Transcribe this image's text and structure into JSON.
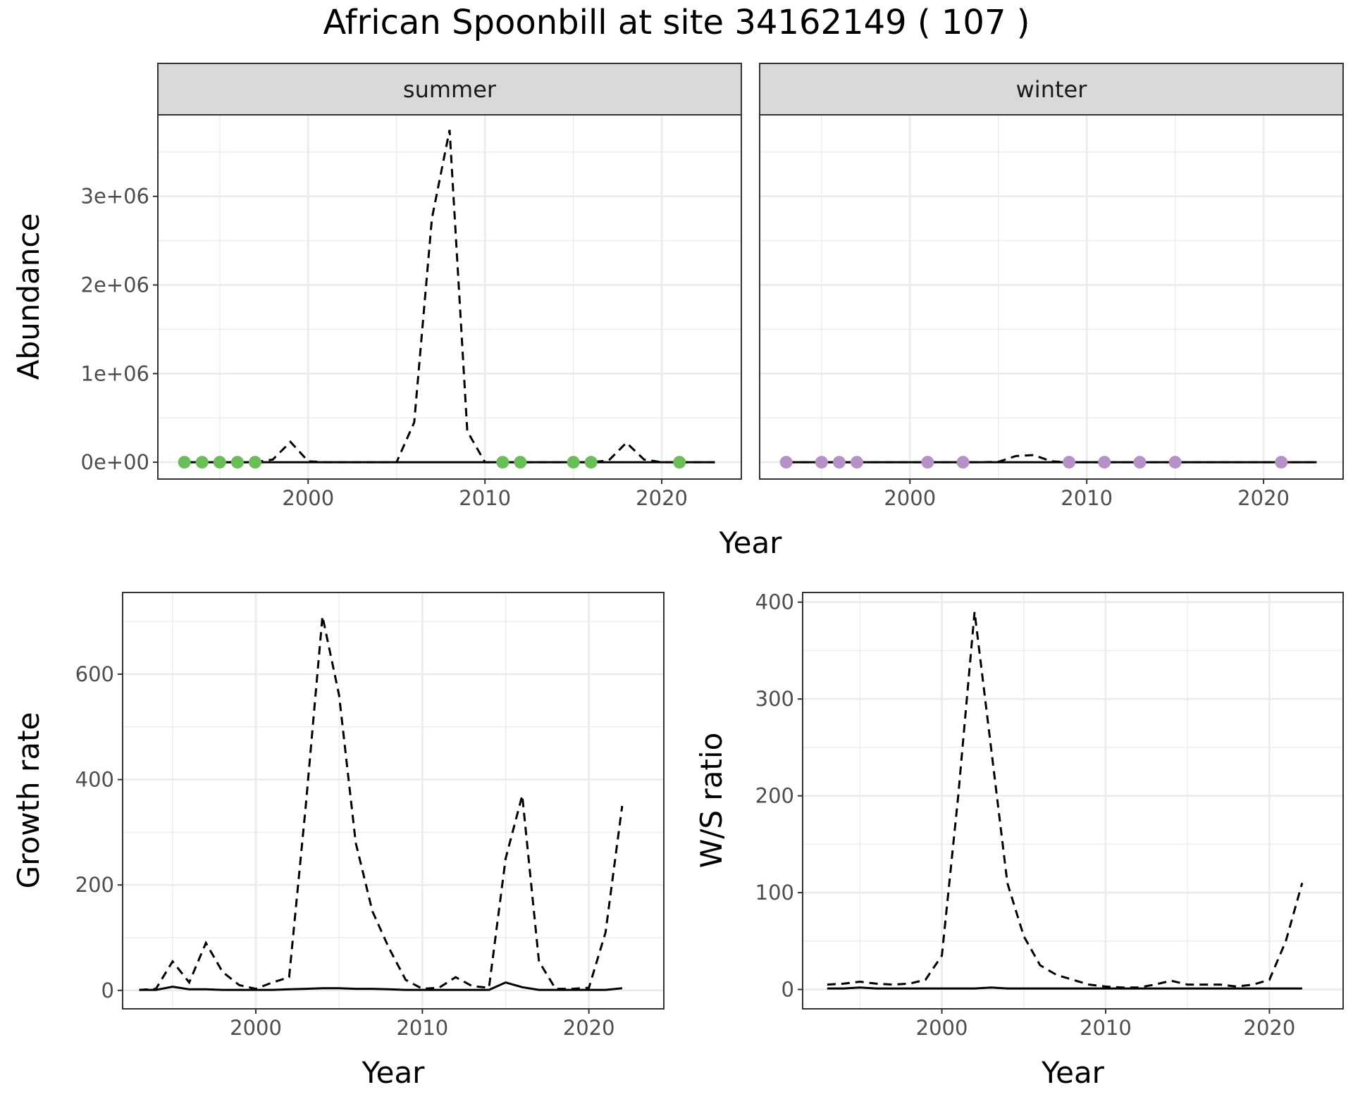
{
  "figure": {
    "title": "African Spoonbill at site 34162149 ( 107 )"
  },
  "chart_data": [
    {
      "type": "line",
      "id": "abundance",
      "ylabel": "Abundance",
      "xlabel": "Year",
      "xlim": [
        1991.5,
        2024.5
      ],
      "ylim": [
        -190000,
        3920000
      ],
      "xticks": [
        2000,
        2010,
        2020
      ],
      "xtick_labels": [
        "2000",
        "2010",
        "2020"
      ],
      "yticks": [
        0,
        1000000,
        2000000,
        3000000
      ],
      "ytick_labels": [
        "0e+00",
        "1e+06",
        "2e+06",
        "3e+06"
      ],
      "grid": true,
      "facets": [
        {
          "strip": "summer",
          "point_color": "#6bbd5a",
          "series": [
            {
              "style": "solid",
              "x": [
                1993,
                1994,
                1995,
                1996,
                1997,
                1998,
                1999,
                2000,
                2001,
                2002,
                2003,
                2004,
                2005,
                2006,
                2007,
                2008,
                2009,
                2010,
                2011,
                2012,
                2013,
                2014,
                2015,
                2016,
                2017,
                2018,
                2019,
                2020,
                2021,
                2022,
                2023
              ],
              "y": [
                0,
                0,
                0,
                0,
                0,
                0,
                0,
                0,
                0,
                0,
                0,
                0,
                0,
                0,
                0,
                0,
                0,
                0,
                0,
                0,
                0,
                0,
                0,
                0,
                0,
                0,
                0,
                0,
                0,
                0,
                0
              ]
            },
            {
              "style": "dashed",
              "x": [
                1993,
                1994,
                1995,
                1996,
                1997,
                1998,
                1999,
                2000,
                2001,
                2002,
                2003,
                2004,
                2005,
                2006,
                2007,
                2008,
                2009,
                2010,
                2011,
                2012,
                2013,
                2014,
                2015,
                2016,
                2017,
                2018,
                2019,
                2020,
                2021,
                2022,
                2023
              ],
              "y": [
                0,
                0,
                0,
                0,
                0,
                30000,
                230000,
                10000,
                0,
                0,
                0,
                0,
                0,
                450000,
                2750000,
                3750000,
                350000,
                0,
                0,
                0,
                0,
                0,
                0,
                0,
                20000,
                220000,
                30000,
                0,
                0,
                0,
                0
              ]
            }
          ],
          "points": {
            "x": [
              1993,
              1994,
              1995,
              1996,
              1997,
              2011,
              2012,
              2015,
              2016,
              2021
            ],
            "y": [
              0,
              0,
              0,
              0,
              0,
              0,
              0,
              0,
              0,
              0
            ]
          }
        },
        {
          "strip": "winter",
          "point_color": "#b591c8",
          "series": [
            {
              "style": "solid",
              "x": [
                1993,
                1994,
                1995,
                1996,
                1997,
                1998,
                1999,
                2000,
                2001,
                2002,
                2003,
                2004,
                2005,
                2006,
                2007,
                2008,
                2009,
                2010,
                2011,
                2012,
                2013,
                2014,
                2015,
                2016,
                2017,
                2018,
                2019,
                2020,
                2021,
                2022,
                2023
              ],
              "y": [
                0,
                0,
                0,
                0,
                0,
                0,
                0,
                0,
                0,
                0,
                0,
                0,
                0,
                0,
                0,
                0,
                0,
                0,
                0,
                0,
                0,
                0,
                0,
                0,
                0,
                0,
                0,
                0,
                0,
                0,
                0
              ]
            },
            {
              "style": "dashed",
              "x": [
                1993,
                1994,
                1995,
                1996,
                1997,
                1998,
                1999,
                2000,
                2001,
                2002,
                2003,
                2004,
                2005,
                2006,
                2007,
                2008,
                2009,
                2010,
                2011,
                2012,
                2013,
                2014,
                2015,
                2016,
                2017,
                2018,
                2019,
                2020,
                2021,
                2022,
                2023
              ],
              "y": [
                0,
                0,
                0,
                0,
                0,
                0,
                0,
                0,
                0,
                0,
                0,
                0,
                5000,
                70000,
                80000,
                10000,
                0,
                0,
                0,
                0,
                0,
                0,
                0,
                0,
                0,
                0,
                0,
                0,
                0,
                0,
                0
              ]
            }
          ],
          "points": {
            "x": [
              1993,
              1995,
              1996,
              1997,
              2001,
              2003,
              2009,
              2011,
              2013,
              2015,
              2021
            ],
            "y": [
              0,
              0,
              0,
              0,
              0,
              0,
              0,
              0,
              0,
              0,
              0
            ]
          }
        }
      ]
    },
    {
      "type": "line",
      "id": "growth",
      "ylabel": "Growth rate",
      "xlabel": "Year",
      "xlim": [
        1992,
        2024.5
      ],
      "ylim": [
        -35,
        755
      ],
      "xticks": [
        2000,
        2010,
        2020
      ],
      "xtick_labels": [
        "2000",
        "2010",
        "2020"
      ],
      "yticks": [
        0,
        200,
        400,
        600
      ],
      "ytick_labels": [
        "0",
        "200",
        "400",
        "600"
      ],
      "grid": true,
      "series": [
        {
          "style": "solid",
          "x": [
            1993,
            1994,
            1995,
            1996,
            1997,
            1998,
            1999,
            2000,
            2001,
            2002,
            2003,
            2004,
            2005,
            2006,
            2007,
            2008,
            2009,
            2010,
            2011,
            2012,
            2013,
            2014,
            2015,
            2016,
            2017,
            2018,
            2019,
            2020,
            2021,
            2022
          ],
          "y": [
            1,
            1,
            7,
            2,
            2,
            1,
            1,
            1,
            1,
            2,
            3,
            4,
            4,
            3,
            3,
            2,
            1,
            1,
            1,
            1,
            1,
            1,
            15,
            6,
            1,
            1,
            1,
            1,
            1,
            4
          ]
        },
        {
          "style": "dashed",
          "x": [
            1993,
            1994,
            1995,
            1996,
            1997,
            1998,
            1999,
            2000,
            2001,
            2002,
            2003,
            2004,
            2005,
            2006,
            2007,
            2008,
            2009,
            2010,
            2011,
            2012,
            2013,
            2014,
            2015,
            2016,
            2017,
            2018,
            2019,
            2020,
            2021,
            2022
          ],
          "y": [
            1,
            3,
            55,
            15,
            90,
            35,
            10,
            3,
            15,
            25,
            350,
            710,
            560,
            280,
            150,
            80,
            20,
            3,
            5,
            25,
            8,
            5,
            250,
            370,
            55,
            3,
            3,
            5,
            110,
            350
          ]
        }
      ]
    },
    {
      "type": "line",
      "id": "ratio",
      "ylabel": "W/S ratio",
      "xlabel": "Year",
      "xlim": [
        1991.5,
        2024.5
      ],
      "ylim": [
        -20,
        410
      ],
      "xticks": [
        2000,
        2010,
        2020
      ],
      "xtick_labels": [
        "2000",
        "2010",
        "2020"
      ],
      "yticks": [
        0,
        100,
        200,
        300,
        400
      ],
      "ytick_labels": [
        "0",
        "100",
        "200",
        "300",
        "400"
      ],
      "grid": true,
      "series": [
        {
          "style": "solid",
          "x": [
            1993,
            1994,
            1995,
            1996,
            1997,
            1998,
            1999,
            2000,
            2001,
            2002,
            2003,
            2004,
            2005,
            2006,
            2007,
            2008,
            2009,
            2010,
            2011,
            2012,
            2013,
            2014,
            2015,
            2016,
            2017,
            2018,
            2019,
            2020,
            2021,
            2022
          ],
          "y": [
            1,
            1,
            2,
            1,
            1,
            1,
            1,
            1,
            1,
            1,
            2,
            1,
            1,
            1,
            1,
            1,
            1,
            1,
            1,
            1,
            1,
            1,
            1,
            1,
            1,
            1,
            1,
            1,
            1,
            1
          ]
        },
        {
          "style": "dashed",
          "x": [
            1993,
            1994,
            1995,
            1996,
            1997,
            1998,
            1999,
            2000,
            2001,
            2002,
            2003,
            2004,
            2005,
            2006,
            2007,
            2008,
            2009,
            2010,
            2011,
            2012,
            2013,
            2014,
            2015,
            2016,
            2017,
            2018,
            2019,
            2020,
            2021,
            2022
          ],
          "y": [
            5,
            6,
            8,
            6,
            5,
            6,
            10,
            35,
            200,
            390,
            250,
            110,
            55,
            25,
            15,
            10,
            5,
            3,
            2,
            2,
            5,
            9,
            5,
            5,
            5,
            3,
            5,
            10,
            50,
            110
          ]
        }
      ]
    }
  ]
}
